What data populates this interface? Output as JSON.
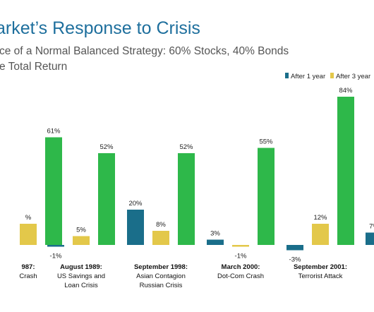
{
  "title": "arket’s Response to Crisis",
  "subtitle": "ce of a Normal Balanced Strategy: 60% Stocks, 40% Bonds",
  "subtitle2": "e Total Return",
  "colors": {
    "after_1_year": "#1a6e8a",
    "after_3_years": "#e3c84a",
    "after_5_years": "#2eb84a",
    "title": "#1e6f9d"
  },
  "chart_data": {
    "type": "bar",
    "title": "arket’s Response to Crisis",
    "ylabel": "",
    "ylim": [
      -5,
      90
    ],
    "legend_position": "top-right",
    "grid": false,
    "categories": [
      {
        "date": "987:",
        "desc": [
          "Crash"
        ]
      },
      {
        "date": "August 1989:",
        "desc": [
          "US Savings and",
          "Loan Crisis"
        ]
      },
      {
        "date": "September 1998:",
        "desc": [
          "Asian Contagion",
          "Russian Crisis"
        ]
      },
      {
        "date": "March 2000:",
        "desc": [
          "Dot-Com Crash"
        ]
      },
      {
        "date": "September 2001:",
        "desc": [
          "Terrorist Attack"
        ]
      },
      {
        "date": "Se",
        "desc": [
          "Lo"
        ]
      }
    ],
    "series": [
      {
        "name": "After 1 year",
        "values": [
          null,
          -1,
          20,
          3,
          -3,
          7
        ],
        "labels": [
          "",
          "-1%",
          "20%",
          "3%",
          "-3%",
          "7%"
        ]
      },
      {
        "name": "After 3 year",
        "values": [
          12,
          5,
          8,
          -1,
          12,
          null
        ],
        "labels": [
          "%",
          "5%",
          "8%",
          "-1%",
          "12%",
          ""
        ]
      },
      {
        "name": "",
        "values": [
          61,
          52,
          52,
          55,
          84,
          null
        ],
        "labels": [
          "61%",
          "52%",
          "52%",
          "55%",
          "84%",
          ""
        ]
      }
    ]
  }
}
